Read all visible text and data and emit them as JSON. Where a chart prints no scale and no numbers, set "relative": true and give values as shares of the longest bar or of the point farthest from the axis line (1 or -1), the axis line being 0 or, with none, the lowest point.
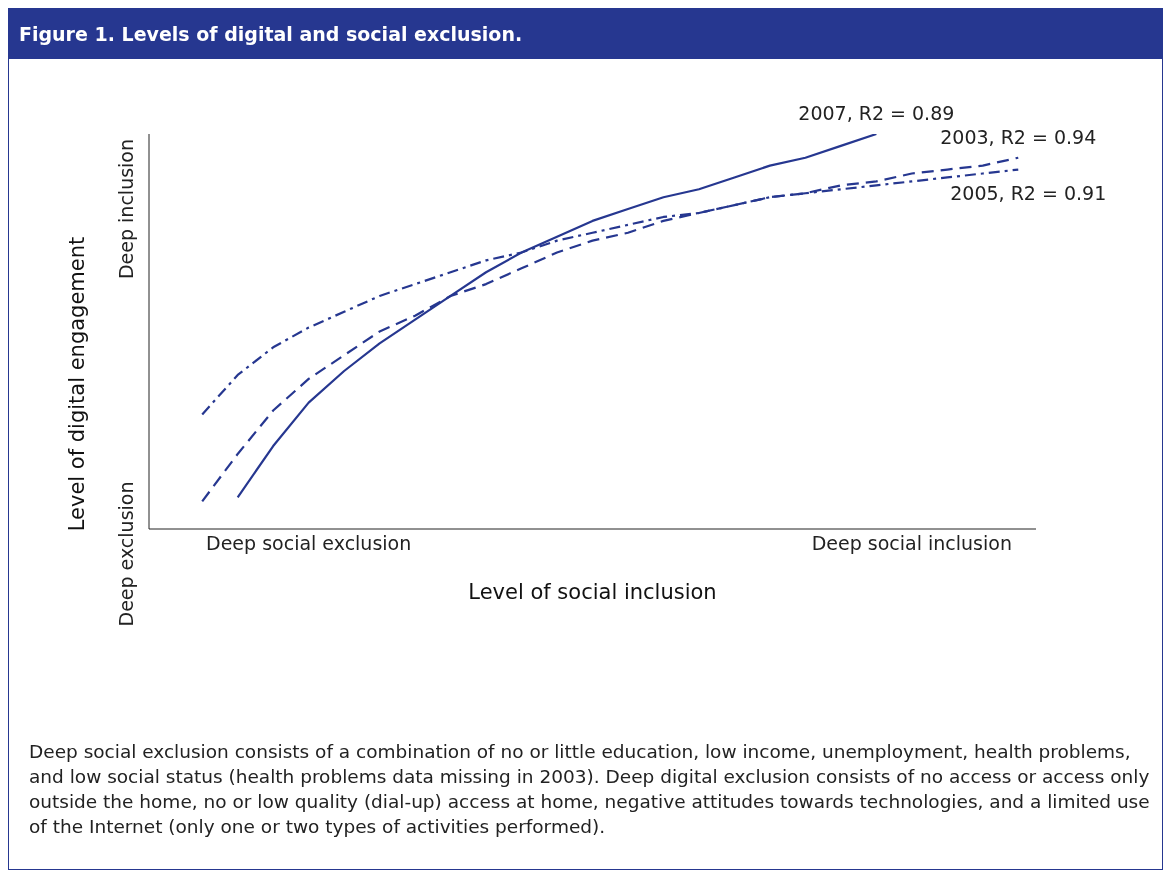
{
  "chart_data": {
    "type": "line",
    "title": "Figure 1. Levels of digital and social exclusion.",
    "xlabel": "Level of social inclusion",
    "ylabel": "Level of digital engagement",
    "relative": true,
    "grid": false,
    "legend": false,
    "marker": "none",
    "categories": [
      null,
      null,
      null,
      null,
      "Deep social exclusion",
      null,
      null,
      null,
      null,
      null,
      null,
      null,
      null,
      null,
      null,
      null,
      null,
      null,
      null,
      null,
      null,
      "Deep social inclusion",
      null,
      null,
      null
    ],
    "series": [
      {
        "name": "2007, R2 = 0.89",
        "color": "#263790",
        "line_style": "solid",
        "values": [
          null,
          null,
          0.08,
          0.21,
          0.32,
          0.4,
          0.47,
          0.53,
          0.59,
          0.65,
          0.7,
          0.74,
          0.78,
          0.81,
          0.84,
          0.86,
          0.89,
          0.92,
          0.94,
          0.97,
          1,
          null,
          null,
          null,
          null
        ]
      },
      {
        "name": "2003, R2 = 0.94",
        "color": "#263790",
        "line_style": "dashed",
        "values": [
          null,
          0.07,
          0.19,
          0.3,
          0.38,
          0.44,
          0.5,
          0.54,
          0.59,
          0.62,
          0.66,
          0.7,
          0.73,
          0.75,
          0.78,
          0.8,
          0.82,
          0.84,
          0.85,
          0.87,
          0.88,
          0.9,
          0.91,
          0.92,
          0.94
        ]
      },
      {
        "name": "2005, R2 = 0.91",
        "color": "#263790",
        "line_style": "dashdot",
        "values": [
          null,
          0.29,
          0.39,
          0.46,
          0.51,
          0.55,
          0.59,
          0.62,
          0.65,
          0.68,
          0.7,
          0.73,
          0.75,
          0.77,
          0.79,
          0.8,
          0.82,
          0.84,
          0.85,
          0.86,
          0.87,
          0.88,
          0.89,
          0.9,
          0.91
        ]
      }
    ],
    "annotations": [
      "Deep exclusion",
      "Deep inclusion",
      "Deep social exclusion consists of a combination of no or little education, low income, unemployment, health problems, and low social status (health problems data missing in 2003). Deep digital exclusion consists of no access or access only outside the home, no or low quality (dial-up) access at home, negative attitudes towards technologies, and a limited use of the Internet (only one or two types of activities performed)."
    ]
  }
}
